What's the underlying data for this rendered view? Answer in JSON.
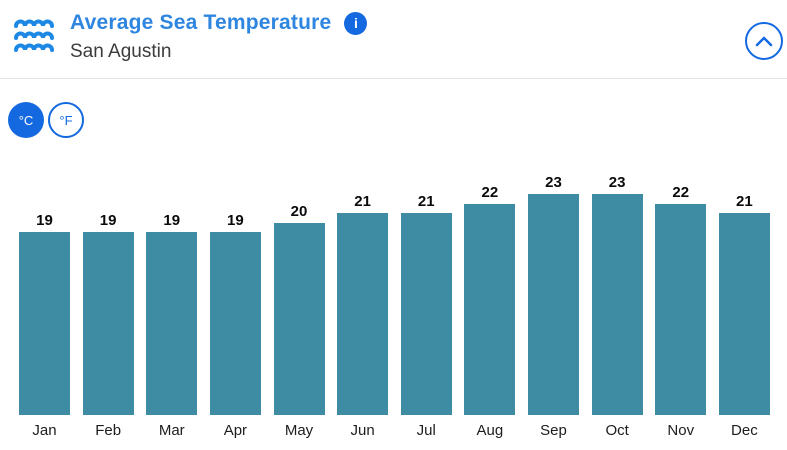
{
  "header": {
    "title": "Average Sea Temperature",
    "subtitle": "San Agustin",
    "info_glyph": "i"
  },
  "unit_toggle": {
    "celsius_label": "°C",
    "fahrenheit_label": "°F",
    "selected": "°C"
  },
  "chart_data": {
    "type": "bar",
    "title": "Average Sea Temperature",
    "subtitle": "San Agustin",
    "categories": [
      "Jan",
      "Feb",
      "Mar",
      "Apr",
      "May",
      "Jun",
      "Jul",
      "Aug",
      "Sep",
      "Oct",
      "Nov",
      "Dec"
    ],
    "values": [
      19,
      19,
      19,
      19,
      20,
      21,
      21,
      22,
      23,
      23,
      22,
      21
    ],
    "unit": "°C",
    "xlabel": "",
    "ylabel": "",
    "ylim": [
      0,
      23
    ],
    "grid": false,
    "legend": false,
    "value_labels": true
  },
  "colors": {
    "accent_blue": "#1569e0",
    "waves_blue": "#1e88e5",
    "title_blue": "#2e86e0",
    "bar_teal": "#3e8ca3"
  }
}
